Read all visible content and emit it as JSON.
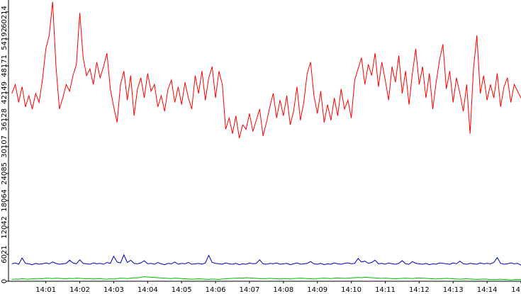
{
  "chart_data": {
    "type": "line",
    "x": [
      840.0,
      840.1,
      840.2,
      840.3,
      840.4,
      840.5,
      840.6,
      840.7,
      840.8,
      840.9,
      841.0,
      841.1,
      841.2,
      841.3,
      841.4,
      841.5,
      841.6,
      841.7,
      841.8,
      841.9,
      842.0,
      842.1,
      842.2,
      842.3,
      842.4,
      842.5,
      842.6,
      842.7,
      842.8,
      842.9,
      843.0,
      843.1,
      843.2,
      843.3,
      843.4,
      843.5,
      843.6,
      843.7,
      843.8,
      843.9,
      844.0,
      844.1,
      844.2,
      844.3,
      844.4,
      844.5,
      844.6,
      844.7,
      844.8,
      844.9,
      845.0,
      845.1,
      845.2,
      845.3,
      845.4,
      845.5,
      845.6,
      845.7,
      845.8,
      845.9,
      846.0,
      846.1,
      846.2,
      846.3,
      846.4,
      846.5,
      846.6,
      846.7,
      846.8,
      846.9,
      847.0,
      847.1,
      847.2,
      847.3,
      847.4,
      847.5,
      847.6,
      847.7,
      847.8,
      847.9,
      848.0,
      848.1,
      848.2,
      848.3,
      848.4,
      848.5,
      848.6,
      848.7,
      848.8,
      848.9,
      849.0,
      849.1,
      849.2,
      849.3,
      849.4,
      849.5,
      849.6,
      849.7,
      849.8,
      849.9,
      850.0,
      850.1,
      850.2,
      850.3,
      850.4,
      850.5,
      850.6,
      850.7,
      850.8,
      850.9,
      851.0,
      851.1,
      851.2,
      851.3,
      851.4,
      851.5,
      851.6,
      851.7,
      851.8,
      851.9,
      852.0,
      852.1,
      852.2,
      852.3,
      852.4,
      852.5,
      852.6,
      852.7,
      852.8,
      852.9,
      853.0,
      853.1,
      853.2,
      853.3,
      853.4,
      853.5,
      853.6,
      853.7,
      853.8,
      853.9,
      854.0,
      854.1,
      854.2,
      854.3,
      854.4,
      854.5,
      854.6,
      854.7,
      854.8,
      854.9,
      855.0
    ],
    "series": [
      {
        "color": "#ff0000",
        "values": [
          42000,
          44000,
          40000,
          43500,
          39000,
          41500,
          38500,
          42000,
          40000,
          45000,
          52000,
          55000,
          62500,
          48000,
          38500,
          41000,
          44000,
          42500,
          46000,
          48500,
          60000,
          50000,
          46000,
          47500,
          44000,
          49000,
          45500,
          48000,
          51000,
          43000,
          39000,
          35500,
          44000,
          47000,
          40500,
          46000,
          37000,
          43000,
          45500,
          41000,
          46500,
          42500,
          44000,
          39000,
          41500,
          38000,
          43000,
          45000,
          40000,
          43500,
          39500,
          44500,
          41000,
          38500,
          46000,
          42000,
          47000,
          40500,
          45500,
          48000,
          41000,
          47000,
          44000,
          34000,
          36500,
          33000,
          37000,
          32000,
          35000,
          34000,
          37500,
          33500,
          36000,
          38500,
          32500,
          35500,
          39000,
          42000,
          36500,
          40500,
          37000,
          41500,
          35000,
          38000,
          43500,
          36000,
          40000,
          46500,
          49000,
          41500,
          37500,
          42500,
          35500,
          39500,
          36000,
          41000,
          37000,
          43000,
          38500,
          40500,
          36500,
          45000,
          47500,
          50000,
          44000,
          48500,
          46000,
          51000,
          43500,
          49000,
          45000,
          40500,
          48000,
          44500,
          50500,
          42000,
          47000,
          39500,
          46500,
          52000,
          44000,
          48000,
          41000,
          46500,
          38500,
          44500,
          49500,
          53000,
          43000,
          47000,
          40000,
          45500,
          42000,
          38000,
          44000,
          33000,
          47500,
          55000,
          42000,
          46000,
          40500,
          44000,
          41000,
          46500,
          39000,
          43500,
          45500,
          40000,
          44000,
          42500,
          41000
        ]
      },
      {
        "color": "#0000c0",
        "values": [
          3900,
          4100,
          3800,
          5200,
          4000,
          3900,
          3700,
          4000,
          3800,
          3900,
          4100,
          3900,
          4300,
          4000,
          3800,
          3900,
          4000,
          4700,
          4100,
          3900,
          4800,
          4000,
          3900,
          3800,
          4100,
          3900,
          4000,
          3800,
          4200,
          4000,
          5600,
          4300,
          4100,
          5900,
          4200,
          4700,
          4000,
          3900,
          4100,
          4600,
          3900,
          4000,
          3800,
          4200,
          3900,
          3700,
          4000,
          3900,
          4300,
          3800,
          4000,
          3900,
          4200,
          3800,
          3900,
          4000,
          3800,
          4100,
          5800,
          4200,
          4000,
          3900,
          3800,
          4100,
          3900,
          3800,
          4000,
          3700,
          3900,
          3800,
          4100,
          3900,
          4000,
          4800,
          3900,
          3800,
          4000,
          3900,
          4100,
          3800,
          3900,
          4000,
          3700,
          3900,
          4100,
          3800,
          3900,
          4000,
          4400,
          3900,
          3800,
          4000,
          3700,
          3900,
          3800,
          4100,
          3900,
          3800,
          4000,
          4100,
          3900,
          4000,
          5100,
          4300,
          4500,
          4000,
          4200,
          4700,
          3900,
          4000,
          3800,
          4100,
          3900,
          3800,
          4000,
          4600,
          3900,
          3800,
          4400,
          4000,
          3900,
          3800,
          4000,
          3700,
          3900,
          3800,
          4100,
          4000,
          3900,
          3800,
          4100,
          3900,
          4500,
          3900,
          3800,
          4000,
          3900,
          3800,
          4100,
          3900,
          4000,
          3900,
          4200,
          5300,
          4000,
          3800,
          3900,
          4100,
          3900,
          4000,
          3600
        ]
      },
      {
        "color": "#00c000",
        "values": [
          400,
          500,
          450,
          600,
          500,
          450,
          550,
          500,
          600,
          550,
          700,
          650,
          600,
          700,
          650,
          600,
          550,
          650,
          600,
          700,
          650,
          600,
          550,
          600,
          500,
          550,
          600,
          500,
          450,
          550,
          500,
          600,
          700,
          650,
          600,
          700,
          800,
          750,
          900,
          1000,
          950,
          900,
          850,
          800,
          750,
          700,
          650,
          600,
          700,
          650,
          600,
          550,
          500,
          450,
          500,
          550,
          500,
          450,
          400,
          500,
          450,
          400,
          500,
          550,
          600,
          650,
          700,
          750,
          700,
          800,
          750,
          700,
          650,
          600,
          550,
          600,
          650,
          600,
          550,
          500,
          600,
          550,
          500,
          600,
          650,
          700,
          650,
          600,
          550,
          500,
          600,
          650,
          700,
          650,
          600,
          700,
          750,
          700,
          650,
          700,
          750,
          800,
          850,
          800,
          900,
          850,
          800,
          750,
          700,
          650,
          700,
          650,
          600,
          550,
          600,
          650,
          700,
          650,
          600,
          700,
          750,
          700,
          650,
          600,
          550,
          500,
          550,
          600,
          650,
          600,
          550,
          500,
          450,
          500,
          550,
          500,
          450,
          400,
          450,
          500,
          450,
          400,
          350,
          400,
          450,
          400,
          350,
          300,
          350,
          400,
          350
        ]
      }
    ],
    "xlim": [
      839.9,
      855.0
    ],
    "ylim": [
      0,
      62900
    ],
    "xticks": [
      {
        "value": 841,
        "label": "14:01"
      },
      {
        "value": 842,
        "label": "14:02"
      },
      {
        "value": 843,
        "label": "14:03"
      },
      {
        "value": 844,
        "label": "14:04"
      },
      {
        "value": 845,
        "label": "14:05"
      },
      {
        "value": 846,
        "label": "14:06"
      },
      {
        "value": 847,
        "label": "14:07"
      },
      {
        "value": 848,
        "label": "14:08"
      },
      {
        "value": 849,
        "label": "14:09"
      },
      {
        "value": 850,
        "label": "14:10"
      },
      {
        "value": 851,
        "label": "14:11"
      },
      {
        "value": 852,
        "label": "14:12"
      },
      {
        "value": 853,
        "label": "14:13"
      },
      {
        "value": 854,
        "label": "14:14"
      },
      {
        "value": 855,
        "label": "14"
      }
    ],
    "yticks": [
      0,
      6021,
      12042,
      18064,
      24085,
      30107,
      36128,
      42149,
      48171,
      54192,
      60214
    ]
  }
}
